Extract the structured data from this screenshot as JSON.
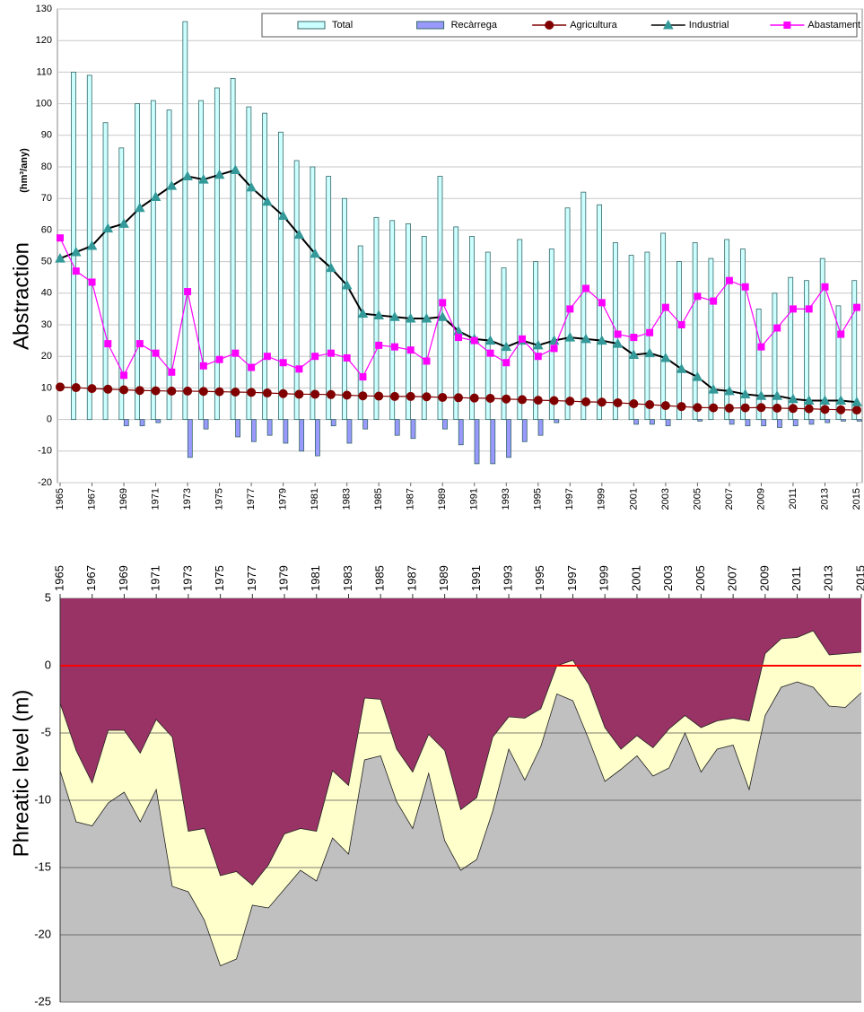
{
  "chart_data": [
    {
      "type": "combo",
      "ylabel": "Abstraction",
      "ylabel_unit": "(hm³/any)",
      "x": [
        1965,
        1966,
        1967,
        1968,
        1969,
        1970,
        1971,
        1972,
        1973,
        1974,
        1975,
        1976,
        1977,
        1978,
        1979,
        1980,
        1981,
        1982,
        1983,
        1984,
        1985,
        1986,
        1987,
        1988,
        1989,
        1990,
        1991,
        1992,
        1993,
        1994,
        1995,
        1996,
        1997,
        1998,
        1999,
        2000,
        2001,
        2002,
        2003,
        2004,
        2005,
        2006,
        2007,
        2008,
        2009,
        2010,
        2011,
        2012,
        2013,
        2014,
        2015
      ],
      "xlim": [
        1965,
        2015
      ],
      "xticks": [
        1965,
        1967,
        1969,
        1971,
        1973,
        1975,
        1977,
        1979,
        1981,
        1983,
        1985,
        1987,
        1989,
        1991,
        1993,
        1995,
        1997,
        1999,
        2001,
        2003,
        2005,
        2007,
        2009,
        2011,
        2013,
        2015
      ],
      "ylim": [
        -20,
        130
      ],
      "yticks": [
        -20,
        -10,
        0,
        10,
        20,
        30,
        40,
        50,
        60,
        70,
        80,
        90,
        100,
        110,
        120,
        130
      ],
      "grid": true,
      "legend": "top-right",
      "series": [
        {
          "name": "Total",
          "kind": "bar",
          "color": "#ccffff",
          "values": [
            null,
            110,
            109,
            94,
            86,
            100,
            101,
            98,
            126,
            101,
            105,
            108,
            99,
            97,
            91,
            82,
            80,
            77,
            70,
            55,
            64,
            63,
            62,
            58,
            77,
            61,
            58,
            53,
            48,
            57,
            50,
            54,
            67,
            72,
            68,
            56,
            52,
            53,
            59,
            50,
            56,
            51,
            57,
            54,
            35,
            40,
            45,
            44,
            51,
            36,
            44
          ]
        },
        {
          "name": "Recàrrega",
          "kind": "bar",
          "color": "#9999ff",
          "values": [
            null,
            0,
            0,
            0,
            -2,
            -2,
            -1,
            0,
            -12,
            -3,
            0,
            -5.5,
            -7,
            -5,
            -7.5,
            -10,
            -11.5,
            -2,
            -7.5,
            -3,
            0,
            -5,
            -6,
            0,
            -3,
            -8,
            -14,
            -14,
            -12,
            -7,
            -5,
            -1,
            0,
            0,
            0,
            0,
            -1.5,
            -1.5,
            -2,
            0,
            -0.5,
            0,
            -1.5,
            -2,
            -2,
            -2.5,
            -2,
            -1.5,
            -1,
            -0.5,
            -0.5
          ]
        },
        {
          "name": "Agricultura",
          "kind": "line",
          "marker": "circle",
          "color": "#800000",
          "line_color": "#800000",
          "values": [
            10.3,
            10.1,
            9.8,
            9.6,
            9.4,
            9.2,
            9.1,
            9.0,
            9.0,
            8.9,
            8.8,
            8.7,
            8.6,
            8.4,
            8.2,
            8.0,
            8.0,
            7.9,
            7.7,
            7.5,
            7.4,
            7.3,
            7.3,
            7.2,
            7.0,
            6.9,
            6.8,
            6.7,
            6.5,
            6.3,
            6.1,
            6.0,
            5.8,
            5.6,
            5.5,
            5.3,
            5.0,
            4.7,
            4.4,
            4.1,
            3.8,
            3.7,
            3.6,
            3.7,
            3.8,
            3.6,
            3.5,
            3.4,
            3.2,
            3.1,
            3.0
          ]
        },
        {
          "name": "Industrial",
          "kind": "line",
          "marker": "triangle",
          "color": "#339999",
          "line_color": "#000000",
          "values": [
            51,
            53,
            55,
            60.5,
            62,
            67,
            70.5,
            74,
            77,
            76,
            77.5,
            79,
            73.5,
            69,
            64.5,
            58.5,
            52.5,
            48,
            42.5,
            33.5,
            33,
            32.5,
            32,
            32,
            32.5,
            28,
            25.5,
            25,
            23,
            25,
            23.5,
            25,
            26,
            25.5,
            25,
            24,
            20.5,
            21,
            19.5,
            16,
            13.5,
            9.5,
            9,
            8,
            7.5,
            7.5,
            6.5,
            6,
            6,
            6,
            5.5
          ]
        },
        {
          "name": "Abastament",
          "kind": "line",
          "marker": "square",
          "color": "#ff00ff",
          "line_color": "#ff00ff",
          "values": [
            57.5,
            47,
            43.5,
            24,
            14,
            24,
            21,
            15,
            40.5,
            17,
            19,
            21,
            16.5,
            20,
            18,
            16,
            20,
            21,
            19.5,
            13.5,
            23.5,
            23,
            22,
            18.5,
            37,
            26,
            25,
            21,
            18,
            25.5,
            20,
            22.5,
            35,
            41.5,
            37,
            27,
            26,
            27.5,
            35.5,
            30,
            39,
            37.5,
            44,
            42,
            23,
            29,
            35,
            35,
            42,
            27,
            35.5
          ]
        }
      ]
    },
    {
      "type": "area",
      "ylabel": "Phreatic level (m)",
      "x": [
        1965,
        1966,
        1967,
        1968,
        1969,
        1970,
        1971,
        1972,
        1973,
        1974,
        1975,
        1976,
        1977,
        1978,
        1979,
        1980,
        1981,
        1982,
        1983,
        1984,
        1985,
        1986,
        1987,
        1988,
        1989,
        1990,
        1991,
        1992,
        1993,
        1994,
        1995,
        1996,
        1997,
        1998,
        1999,
        2000,
        2001,
        2002,
        2003,
        2004,
        2005,
        2006,
        2007,
        2008,
        2009,
        2010,
        2011,
        2012,
        2013,
        2014,
        2015
      ],
      "xlim": [
        1965,
        2015
      ],
      "xticks": [
        1965,
        1967,
        1969,
        1971,
        1973,
        1975,
        1977,
        1979,
        1981,
        1983,
        1985,
        1987,
        1989,
        1991,
        1993,
        1995,
        1997,
        1999,
        2001,
        2003,
        2005,
        2007,
        2009,
        2011,
        2013,
        2015
      ],
      "ylim": [
        -25,
        5
      ],
      "yticks": [
        -25,
        -20,
        -15,
        -10,
        -5,
        0,
        5
      ],
      "grid": true,
      "background_color": "#993366",
      "reference_line": {
        "value": 0,
        "color": "#ff0000"
      },
      "series": [
        {
          "color": "#ffffcc",
          "values": [
            -2.8,
            -6.3,
            -8.7,
            -4.8,
            -4.8,
            -6.5,
            -4,
            -5.3,
            -12.3,
            -12.1,
            -15.6,
            -15.3,
            -16.3,
            -14.8,
            -12.5,
            -12.1,
            -12.3,
            -7.8,
            -8.9,
            -2.4,
            -2.5,
            -6.2,
            -7.9,
            -5.1,
            -6.3,
            -10.7,
            -9.8,
            -5.3,
            -3.8,
            -3.9,
            -3.2,
            0,
            0.4,
            -1.4,
            -4.6,
            -6.2,
            -5.2,
            -6.1,
            -4.7,
            -3.7,
            -4.6,
            -4.1,
            -3.9,
            -4.1,
            0.9,
            2,
            2.1,
            2.6,
            0.8,
            0.9,
            1.0
          ]
        },
        {
          "color": "#c0c0c0",
          "values": [
            -7.8,
            -11.6,
            -11.9,
            -10.2,
            -9.4,
            -11.6,
            -9.2,
            -16.4,
            -16.8,
            -18.9,
            -22.3,
            -21.8,
            -17.8,
            -18,
            -16.6,
            -15.2,
            -16,
            -12.8,
            -14,
            -7,
            -6.7,
            -10.1,
            -12.1,
            -8,
            -13,
            -15.2,
            -14.4,
            -10.8,
            -6.2,
            -8.5,
            -6,
            -2.1,
            -2.6,
            -5.5,
            -8.6,
            -7.7,
            -6.7,
            -8.2,
            -7.6,
            -5,
            -7.9,
            -6.2,
            -5.9,
            -9.2,
            -3.7,
            -1.6,
            -1.2,
            -1.6,
            -3,
            -3.1,
            -2
          ]
        }
      ]
    }
  ]
}
